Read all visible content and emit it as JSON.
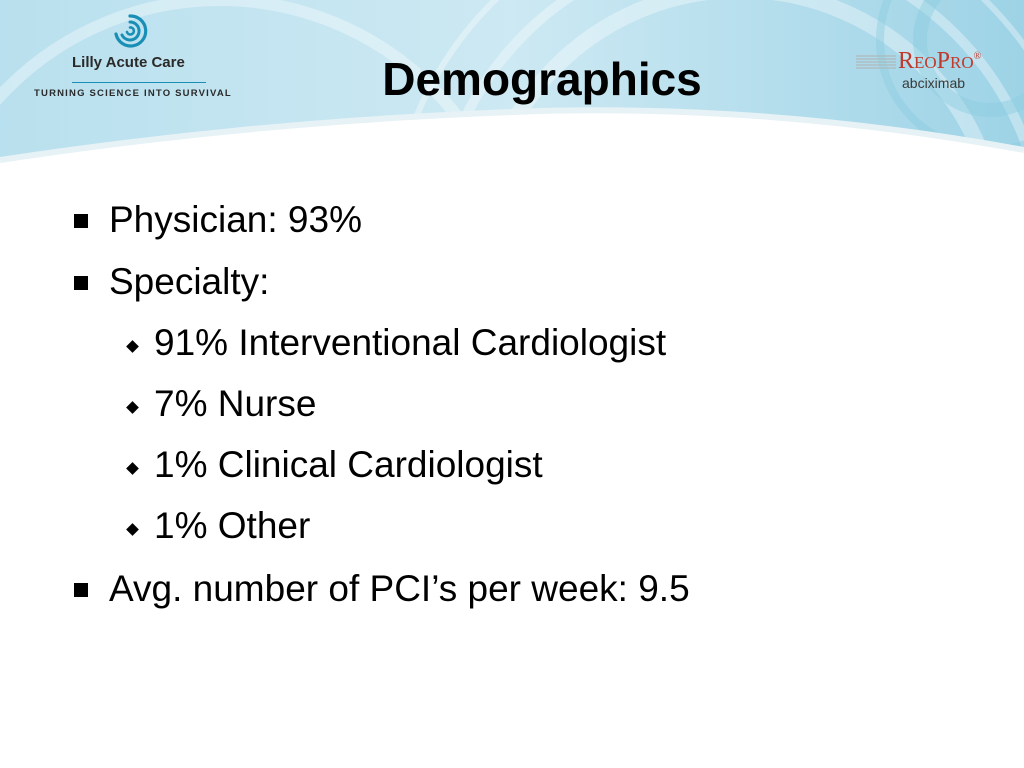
{
  "slide": {
    "title": "Demographics"
  },
  "logo_left": {
    "name": "Lilly Acute Care",
    "tagline": "TURNING SCIENCE INTO SURVIVAL",
    "icon": "swirl-logo-icon",
    "accent": "#1a8fb6"
  },
  "logo_right": {
    "brand": "ReoPro",
    "brand_mark": "®",
    "generic": "abciximab",
    "brand_color": "#c0392b"
  },
  "bullets": [
    {
      "text": "Physician: 93%",
      "level": 1
    },
    {
      "text": "Specialty:",
      "level": 1
    },
    {
      "text": "91% Interventional Cardiologist",
      "level": 2
    },
    {
      "text": "7% Nurse",
      "level": 2
    },
    {
      "text": "1% Clinical Cardiologist",
      "level": 2
    },
    {
      "text": "1% Other",
      "level": 2
    },
    {
      "text": "Avg. number of PCI’s per week: 9.5",
      "level": 1
    }
  ],
  "colors": {
    "header_light": "#d7eef5",
    "header_mid": "#aedbe9",
    "header_dark": "#8ccbe0",
    "text": "#000000"
  }
}
